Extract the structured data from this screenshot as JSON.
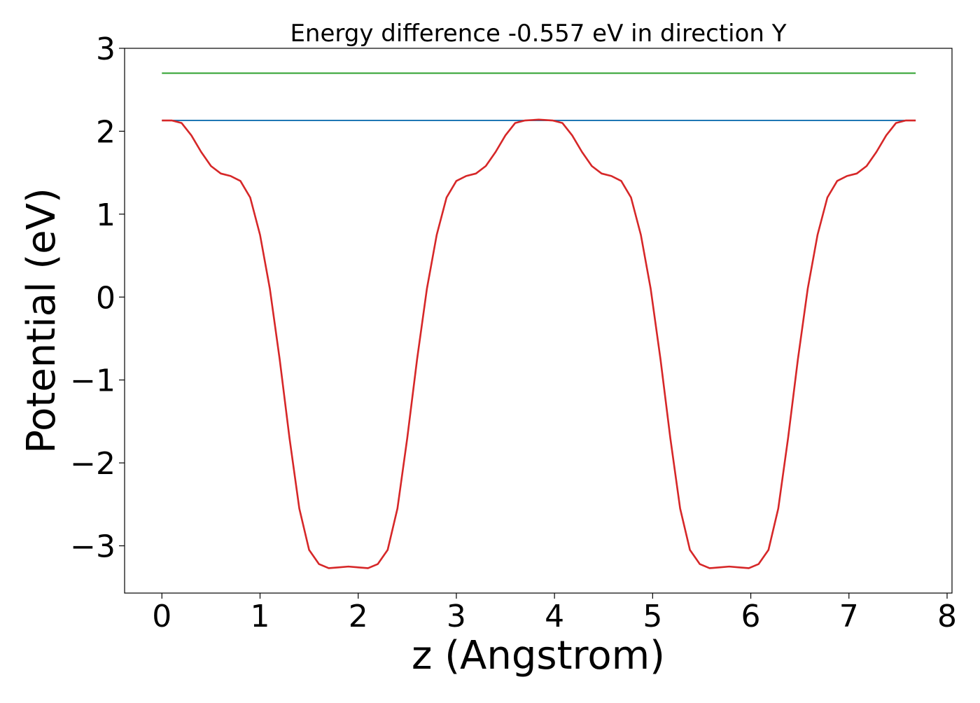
{
  "chart_data": {
    "type": "line",
    "title": "Energy difference -0.557 eV in direction Y",
    "xlabel": "z (Angstrom)",
    "ylabel": "Potential (eV)",
    "xlim": [
      -0.38,
      8.05
    ],
    "ylim": [
      -3.57,
      3.0
    ],
    "x_ticks": [
      0,
      1,
      2,
      3,
      4,
      5,
      6,
      7,
      8
    ],
    "x_tick_labels": [
      "0",
      "1",
      "2",
      "3",
      "4",
      "5",
      "6",
      "7",
      "8"
    ],
    "y_ticks": [
      -3,
      -2,
      -1,
      0,
      1,
      2,
      3
    ],
    "y_tick_labels": [
      "−3",
      "−2",
      "−1",
      "0",
      "1",
      "2",
      "3"
    ],
    "grid": false,
    "legend": false,
    "series": [
      {
        "kind": "hline",
        "color": "#2ca02c",
        "x": [
          0,
          7.68
        ],
        "y": [
          2.7,
          2.7
        ]
      },
      {
        "kind": "hline",
        "color": "#1f77b4",
        "x": [
          0,
          7.68
        ],
        "y": [
          2.13,
          2.13
        ]
      },
      {
        "kind": "curve",
        "color": "#d62728",
        "x": [
          0.0,
          0.1,
          0.2,
          0.3,
          0.4,
          0.5,
          0.6,
          0.7,
          0.8,
          0.9,
          1.0,
          1.1,
          1.2,
          1.3,
          1.4,
          1.5,
          1.6,
          1.7,
          1.8,
          1.9,
          2.0,
          2.1,
          2.2,
          2.3,
          2.4,
          2.5,
          2.6,
          2.7,
          2.8,
          2.9,
          3.0,
          3.1,
          3.2,
          3.3,
          3.4,
          3.5,
          3.6,
          3.7,
          3.84,
          3.98,
          4.08,
          4.18,
          4.28,
          4.38,
          4.48,
          4.58,
          4.68,
          4.78,
          4.88,
          4.98,
          5.08,
          5.18,
          5.28,
          5.38,
          5.48,
          5.58,
          5.68,
          5.78,
          5.88,
          5.98,
          6.08,
          6.18,
          6.28,
          6.38,
          6.48,
          6.58,
          6.68,
          6.78,
          6.88,
          6.98,
          7.08,
          7.18,
          7.28,
          7.38,
          7.48,
          7.58,
          7.68
        ],
        "y": [
          2.13,
          2.13,
          2.1,
          1.95,
          1.75,
          1.58,
          1.49,
          1.46,
          1.4,
          1.2,
          0.75,
          0.1,
          -0.75,
          -1.7,
          -2.55,
          -3.05,
          -3.22,
          -3.27,
          -3.26,
          -3.25,
          -3.26,
          -3.27,
          -3.22,
          -3.05,
          -2.55,
          -1.7,
          -0.75,
          0.1,
          0.75,
          1.2,
          1.4,
          1.46,
          1.49,
          1.58,
          1.75,
          1.95,
          2.1,
          2.13,
          2.14,
          2.13,
          2.1,
          1.95,
          1.75,
          1.58,
          1.49,
          1.46,
          1.4,
          1.2,
          0.75,
          0.1,
          -0.75,
          -1.7,
          -2.55,
          -3.05,
          -3.22,
          -3.27,
          -3.26,
          -3.25,
          -3.26,
          -3.27,
          -3.22,
          -3.05,
          -2.55,
          -1.7,
          -0.75,
          0.1,
          0.75,
          1.2,
          1.4,
          1.46,
          1.49,
          1.58,
          1.75,
          1.95,
          2.1,
          2.13,
          2.13
        ]
      }
    ]
  }
}
